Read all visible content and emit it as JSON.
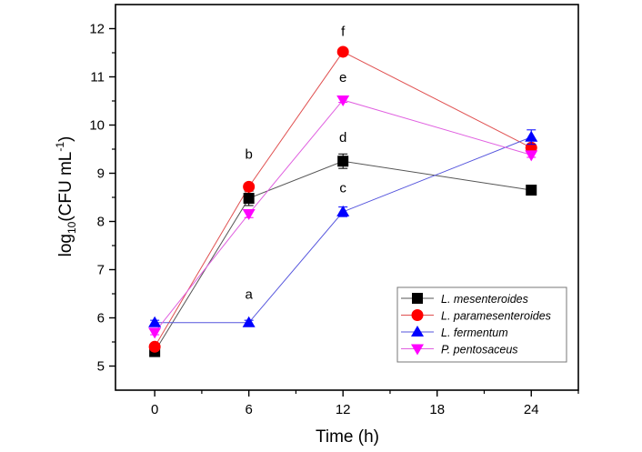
{
  "chart_data": {
    "type": "line",
    "title": "",
    "xlabel": "Time (h)",
    "ylabel_main": "log",
    "ylabel_sub": "10",
    "ylabel_rest": "(CFU mL",
    "ylabel_sup": "-1",
    "ylabel_close": ")",
    "xlim": [
      -2.5,
      27
    ],
    "ylim": [
      4.5,
      12.5
    ],
    "x_ticks": [
      0,
      6,
      12,
      18,
      24
    ],
    "x_minor_ticks": [
      3,
      9,
      15,
      21,
      27
    ],
    "y_ticks": [
      5,
      6,
      7,
      8,
      9,
      10,
      11,
      12
    ],
    "y_minor_ticks": [
      5.5,
      6.5,
      7.5,
      8.5,
      9.5,
      10.5,
      11.5
    ],
    "legend_position": "bottom-right",
    "x": [
      0,
      6,
      12,
      24
    ],
    "series": [
      {
        "name": "L. mesenteroides",
        "color": "#000000",
        "marker": "square",
        "values": [
          5.3,
          8.48,
          9.25,
          8.65
        ],
        "errors": [
          0.05,
          0.15,
          0.15,
          0.03
        ]
      },
      {
        "name": "L. paramesenteroides",
        "color": "#ff0000",
        "marker": "circle",
        "values": [
          5.4,
          8.72,
          11.52,
          9.53
        ],
        "errors": [
          0.05,
          0.05,
          0.05,
          0.05
        ]
      },
      {
        "name": "L. fermentum",
        "color": "#0000ff",
        "marker": "triangle-up",
        "values": [
          5.9,
          5.9,
          8.2,
          9.75
        ],
        "errors": [
          0.05,
          0.05,
          0.1,
          0.15
        ]
      },
      {
        "name": "P. pentosaceus",
        "color": "#ff00ff",
        "marker": "triangle-down",
        "values": [
          5.7,
          8.16,
          10.52,
          9.38
        ],
        "errors": [
          0.05,
          0.08,
          0.05,
          0.05
        ]
      }
    ],
    "annotations": [
      {
        "text": "a",
        "x": 6,
        "y": 6.4
      },
      {
        "text": "b",
        "x": 6,
        "y": 9.3
      },
      {
        "text": "c",
        "x": 12,
        "y": 8.6
      },
      {
        "text": "d",
        "x": 12,
        "y": 9.65
      },
      {
        "text": "e",
        "x": 12,
        "y": 10.9
      },
      {
        "text": "f",
        "x": 12,
        "y": 11.85
      }
    ]
  }
}
